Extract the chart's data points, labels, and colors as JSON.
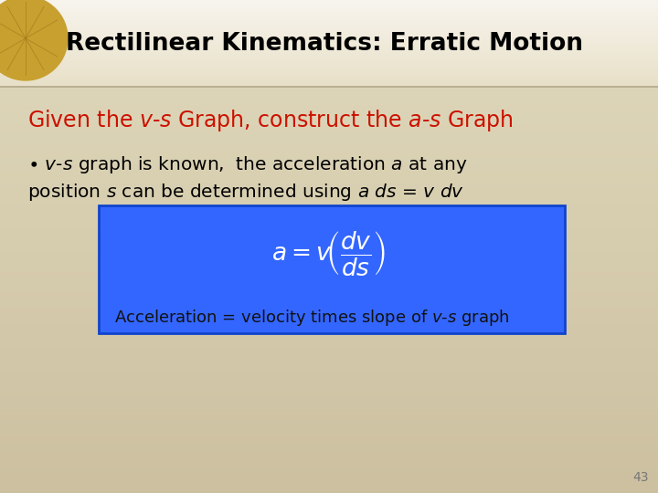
{
  "title": "Rectilinear Kinematics: Erratic Motion",
  "subtitle_plain": "Given the ",
  "subtitle_italic1": "v",
  "subtitle_dash1": "-",
  "subtitle_italic2": "s",
  "subtitle_mid": " Graph, construct the ",
  "subtitle_italic3": "a",
  "subtitle_dash2": "-",
  "subtitle_italic4": "s",
  "subtitle_end": " Graph",
  "bullet_line1_pre": "• ",
  "bullet_line1_it1": "v",
  "bullet_line1_mid1": "-",
  "bullet_line1_it2": "s",
  "bullet_line1_post": " graph is known,  the acceleration ",
  "bullet_line1_it3": "a",
  "bullet_line1_end": " at any",
  "bullet_line2": "position ",
  "bullet_line2_it1": "s",
  "bullet_line2_mid": " can be determined using ",
  "bullet_line2_it2": "a",
  "bullet_line2_it3": " ds",
  "bullet_line2_eq": " = ",
  "bullet_line2_it4": "v",
  "bullet_line2_it5": " dv",
  "box_caption": "Acceleration = velocity times slope of ",
  "box_caption_it": "v-s",
  "box_caption_end": " graph",
  "title_color": "#000000",
  "subtitle_color": "#cc1100",
  "bullet_color": "#000000",
  "box_color": "#3366ff",
  "box_edge_color": "#1144cc",
  "box_formula_color": "#ffffff",
  "box_caption_color": "#111111",
  "page_number": "43",
  "page_number_color": "#777777",
  "header_bg_top": "#f5f2e8",
  "header_bg_bottom": "#e8e0c8",
  "body_bg_top": "#e8e0c8",
  "body_bg_bottom": "#ccc0a0"
}
